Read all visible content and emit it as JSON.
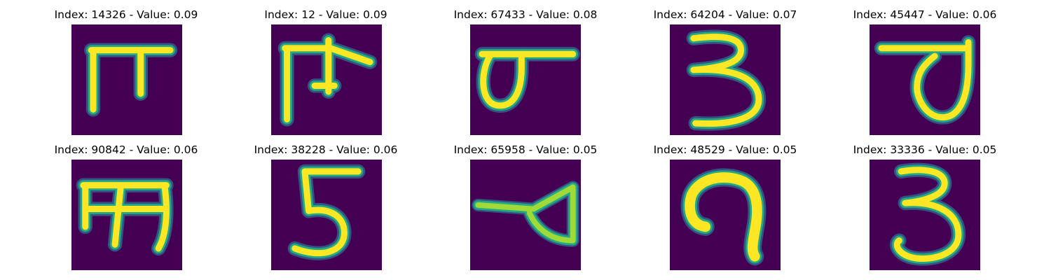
{
  "colors": {
    "background": "#440154",
    "ink_core": "#fde725",
    "ink_mid": "#22a884",
    "ink_edge": "#31688e"
  },
  "grid": {
    "rows": 2,
    "columns": 5
  },
  "cells": [
    {
      "title": "Index: 14326 - Value: 0.09",
      "index": 14326,
      "value": 0.09,
      "glyph": "devanagari-ga"
    },
    {
      "title": "Index: 12 - Value: 0.09",
      "index": 12,
      "value": 0.09,
      "glyph": "devanagari-character"
    },
    {
      "title": "Index: 67433 - Value: 0.08",
      "index": 67433,
      "value": 0.08,
      "glyph": "devanagari-loop-character"
    },
    {
      "title": "Index: 64204 - Value: 0.07",
      "index": 64204,
      "value": 0.07,
      "glyph": "digit-three"
    },
    {
      "title": "Index: 45447 - Value: 0.06",
      "index": 45447,
      "value": 0.06,
      "glyph": "devanagari-va"
    },
    {
      "title": "Index: 90842 - Value: 0.06",
      "index": 90842,
      "value": 0.06,
      "glyph": "devanagari-ma"
    },
    {
      "title": "Index: 38228 - Value: 0.06",
      "index": 38228,
      "value": 0.06,
      "glyph": "digit-five"
    },
    {
      "title": "Index: 65958 - Value: 0.05",
      "index": 65958,
      "value": 0.05,
      "glyph": "devanagari-pha"
    },
    {
      "title": "Index: 48529 - Value: 0.05",
      "index": 48529,
      "value": 0.05,
      "glyph": "devanagari-nine"
    },
    {
      "title": "Index: 33336 - Value: 0.05",
      "index": 33336,
      "value": 0.05,
      "glyph": "digit-three"
    }
  ]
}
